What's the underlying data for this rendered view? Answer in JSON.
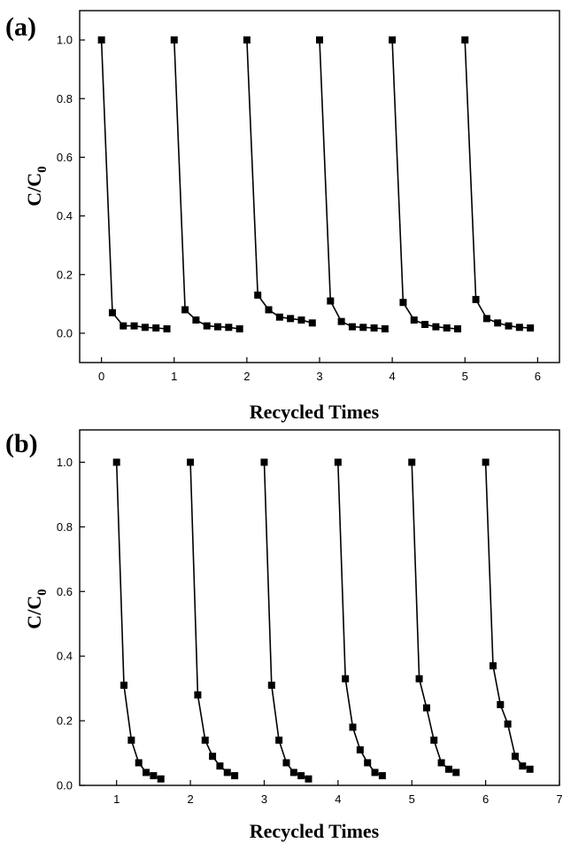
{
  "chart_data": [
    {
      "type": "line",
      "panel_label": "(a)",
      "xlabel": "Recycled Times",
      "ylabel": "C/C",
      "ylabel_sub": "0",
      "xlim": [
        -0.3,
        6.3
      ],
      "ylim": [
        -0.1,
        1.1
      ],
      "xticks": [
        0,
        1,
        2,
        3,
        4,
        5,
        6
      ],
      "yticks": [
        0.0,
        0.2,
        0.4,
        0.6,
        0.8,
        1.0
      ],
      "ytick_labels": [
        "0.0",
        "0.2",
        "0.4",
        "0.6",
        "0.8",
        "1.0"
      ],
      "marker": "square",
      "color": "#000000",
      "cycles": [
        {
          "x": [
            0.0,
            0.15,
            0.3,
            0.45,
            0.6,
            0.75,
            0.9
          ],
          "y": [
            1.0,
            0.07,
            0.025,
            0.025,
            0.02,
            0.018,
            0.015
          ]
        },
        {
          "x": [
            1.0,
            1.15,
            1.3,
            1.45,
            1.6,
            1.75,
            1.9
          ],
          "y": [
            1.0,
            0.08,
            0.045,
            0.025,
            0.022,
            0.02,
            0.015
          ]
        },
        {
          "x": [
            2.0,
            2.15,
            2.3,
            2.45,
            2.6,
            2.75,
            2.9
          ],
          "y": [
            1.0,
            0.13,
            0.08,
            0.055,
            0.05,
            0.045,
            0.035
          ]
        },
        {
          "x": [
            3.0,
            3.15,
            3.3,
            3.45,
            3.6,
            3.75,
            3.9
          ],
          "y": [
            1.0,
            0.11,
            0.04,
            0.022,
            0.02,
            0.018,
            0.015
          ]
        },
        {
          "x": [
            4.0,
            4.15,
            4.3,
            4.45,
            4.6,
            4.75,
            4.9
          ],
          "y": [
            1.0,
            0.105,
            0.045,
            0.03,
            0.022,
            0.018,
            0.015
          ]
        },
        {
          "x": [
            5.0,
            5.15,
            5.3,
            5.45,
            5.6,
            5.75,
            5.9
          ],
          "y": [
            1.0,
            0.115,
            0.05,
            0.035,
            0.025,
            0.02,
            0.018
          ]
        }
      ]
    },
    {
      "type": "line",
      "panel_label": "(b)",
      "xlabel": "Recycled Times",
      "ylabel": "C/C",
      "ylabel_sub": "0",
      "xlim": [
        0.5,
        7.0
      ],
      "ylim": [
        0.0,
        1.1
      ],
      "xticks": [
        1,
        2,
        3,
        4,
        5,
        6,
        7
      ],
      "yticks": [
        0.0,
        0.2,
        0.4,
        0.6,
        0.8,
        1.0
      ],
      "ytick_labels": [
        "0.0",
        "0.2",
        "0.4",
        "0.6",
        "0.8",
        "1.0"
      ],
      "marker": "square",
      "color": "#000000",
      "cycles": [
        {
          "x": [
            1.0,
            1.1,
            1.2,
            1.3,
            1.4,
            1.5,
            1.6
          ],
          "y": [
            1.0,
            0.31,
            0.14,
            0.07,
            0.04,
            0.03,
            0.02
          ]
        },
        {
          "x": [
            2.0,
            2.1,
            2.2,
            2.3,
            2.4,
            2.5,
            2.6
          ],
          "y": [
            1.0,
            0.28,
            0.14,
            0.09,
            0.06,
            0.04,
            0.03
          ]
        },
        {
          "x": [
            3.0,
            3.1,
            3.2,
            3.3,
            3.4,
            3.5,
            3.6
          ],
          "y": [
            1.0,
            0.31,
            0.14,
            0.07,
            0.04,
            0.03,
            0.02
          ]
        },
        {
          "x": [
            4.0,
            4.1,
            4.2,
            4.3,
            4.4,
            4.5,
            4.6
          ],
          "y": [
            1.0,
            0.33,
            0.18,
            0.11,
            0.07,
            0.04,
            0.03
          ]
        },
        {
          "x": [
            5.0,
            5.1,
            5.2,
            5.3,
            5.4,
            5.5,
            5.6
          ],
          "y": [
            1.0,
            0.33,
            0.24,
            0.14,
            0.07,
            0.05,
            0.04
          ]
        },
        {
          "x": [
            6.0,
            6.1,
            6.2,
            6.3,
            6.4,
            6.5,
            6.6
          ],
          "y": [
            1.0,
            0.37,
            0.25,
            0.19,
            0.09,
            0.06,
            0.05
          ]
        }
      ]
    }
  ]
}
